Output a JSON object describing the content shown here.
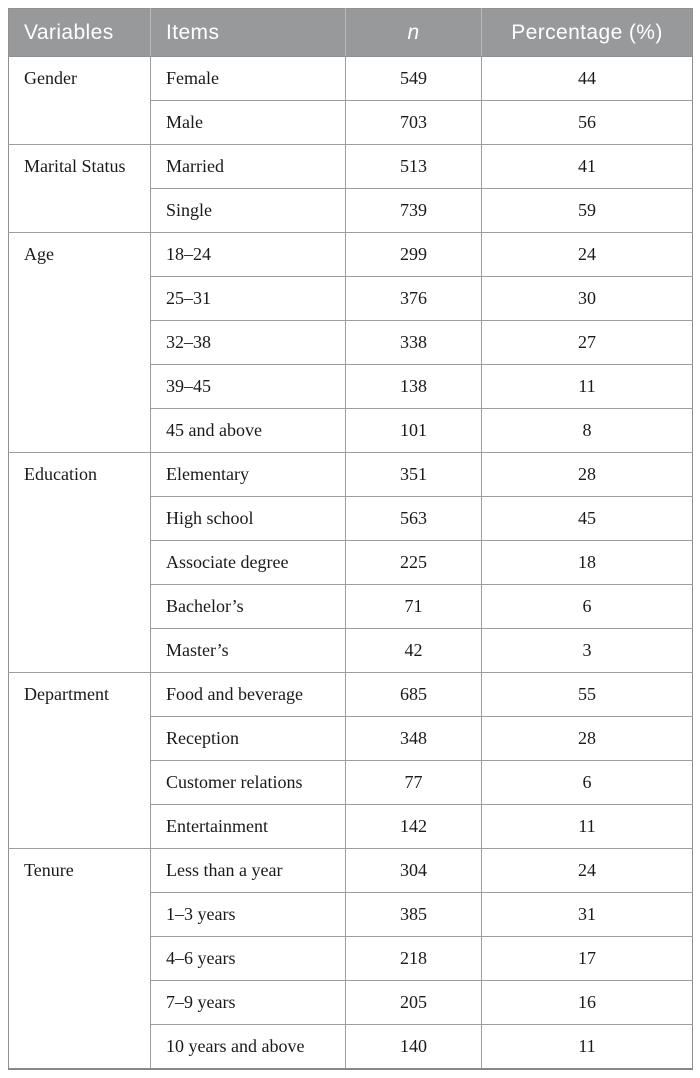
{
  "table": {
    "headers": {
      "variables": "Variables",
      "items": "Items",
      "n": "n",
      "percentage": "Percentage (%)"
    },
    "groups": [
      {
        "variable": "Gender",
        "rows": [
          {
            "item": "Female",
            "n": "549",
            "pct": "44"
          },
          {
            "item": "Male",
            "n": "703",
            "pct": "56"
          }
        ]
      },
      {
        "variable": "Marital Status",
        "rows": [
          {
            "item": "Married",
            "n": "513",
            "pct": "41"
          },
          {
            "item": "Single",
            "n": "739",
            "pct": "59"
          }
        ]
      },
      {
        "variable": "Age",
        "rows": [
          {
            "item": "18–24",
            "n": "299",
            "pct": "24"
          },
          {
            "item": "25–31",
            "n": "376",
            "pct": "30"
          },
          {
            "item": "32–38",
            "n": "338",
            "pct": "27"
          },
          {
            "item": "39–45",
            "n": "138",
            "pct": "11"
          },
          {
            "item": "45 and above",
            "n": "101",
            "pct": "8"
          }
        ]
      },
      {
        "variable": "Education",
        "rows": [
          {
            "item": "Elementary",
            "n": "351",
            "pct": "28"
          },
          {
            "item": "High school",
            "n": "563",
            "pct": "45"
          },
          {
            "item": "Associate degree",
            "n": "225",
            "pct": "18"
          },
          {
            "item": "Bachelor’s",
            "n": "71",
            "pct": "6"
          },
          {
            "item": "Master’s",
            "n": "42",
            "pct": "3"
          }
        ]
      },
      {
        "variable": "Department",
        "rows": [
          {
            "item": "Food and beverage",
            "n": "685",
            "pct": "55"
          },
          {
            "item": "Reception",
            "n": "348",
            "pct": "28"
          },
          {
            "item": "Customer relations",
            "n": "77",
            "pct": "6"
          },
          {
            "item": "Entertainment",
            "n": "142",
            "pct": "11"
          }
        ]
      },
      {
        "variable": "Tenure",
        "rows": [
          {
            "item": "Less than a year",
            "n": "304",
            "pct": "24"
          },
          {
            "item": "1–3 years",
            "n": "385",
            "pct": "31"
          },
          {
            "item": "4–6 years",
            "n": "218",
            "pct": "17"
          },
          {
            "item": "7–9 years",
            "n": "205",
            "pct": "16"
          },
          {
            "item": "10 years and above",
            "n": "140",
            "pct": "11"
          }
        ]
      }
    ],
    "colors": {
      "header_background": "#97999b",
      "header_text": "#ffffff",
      "body_text": "#1a1a1a",
      "grid_line": "#9b9da0"
    }
  }
}
